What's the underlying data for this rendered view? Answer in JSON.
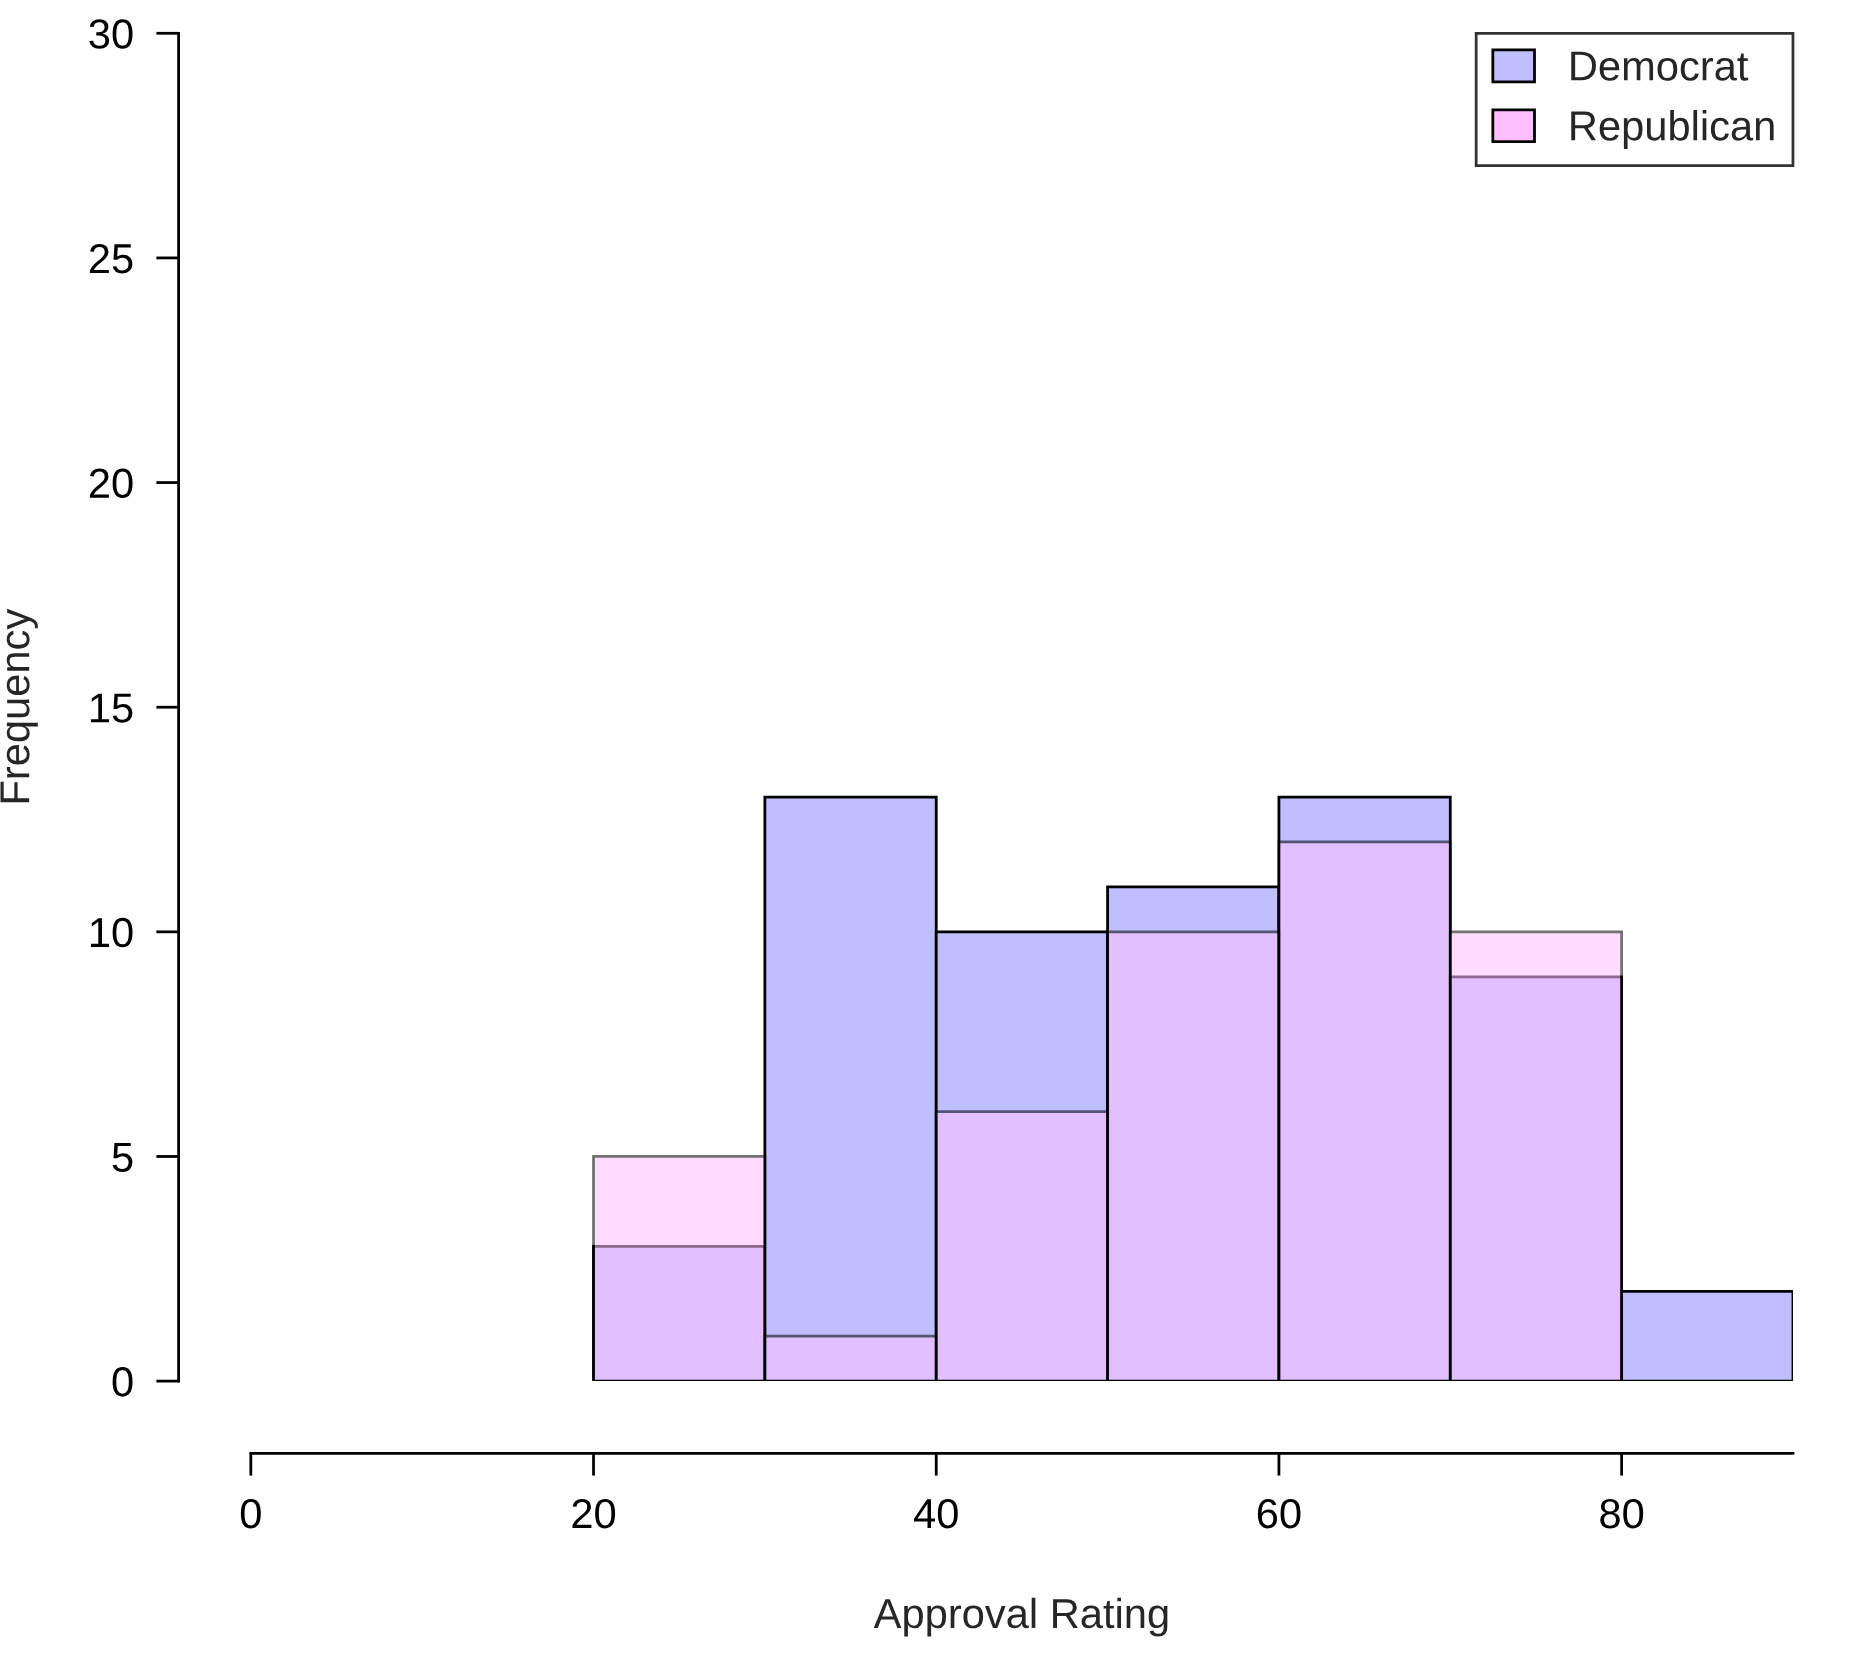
{
  "chart_data": {
    "type": "histogram",
    "xlabel": "Approval Rating",
    "ylabel": "Frequency",
    "bins": [
      20,
      30,
      40,
      50,
      60,
      70,
      80,
      90
    ],
    "series": [
      {
        "name": "Democrat",
        "color": "#bfbfff",
        "values": [
          3,
          13,
          10,
          11,
          13,
          9,
          2
        ]
      },
      {
        "name": "Republican",
        "color": "#ffbfff",
        "values": [
          5,
          1,
          6,
          10,
          12,
          10,
          0
        ]
      }
    ],
    "xlim": [
      0,
      90
    ],
    "ylim": [
      0,
      30
    ],
    "xticks": [
      0,
      20,
      40,
      60,
      80
    ],
    "yticks": [
      0,
      5,
      10,
      15,
      20,
      25,
      30
    ],
    "grid": false,
    "legend": "top right"
  }
}
